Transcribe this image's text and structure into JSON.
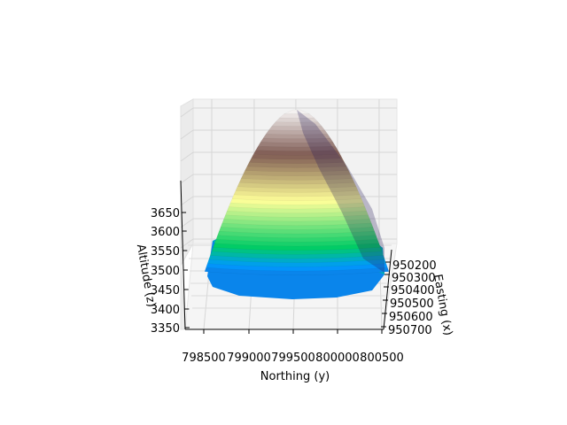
{
  "chart_data": {
    "type": "surface3d",
    "title": "",
    "colormap": "terrain",
    "grid": true,
    "axes": {
      "x": {
        "label": "Northing (y)",
        "range": [
          798300,
          800600
        ],
        "ticks": [
          "798500",
          "799000",
          "799500",
          "800000",
          "800500"
        ]
      },
      "y": {
        "label": "Easting (x)",
        "range": [
          950150,
          950720
        ],
        "ticks": [
          "950200",
          "950300",
          "950400",
          "950500",
          "950600",
          "950700"
        ]
      },
      "z": {
        "label": "Altitude (z)",
        "range": [
          3340,
          3720
        ],
        "ticks": [
          "3350",
          "3400",
          "3450",
          "3500",
          "3550",
          "3600",
          "3650"
        ]
      }
    },
    "surface": {
      "peak_altitude": 3720,
      "base_altitude": 3440,
      "profile_bands_bottom_to_top": [
        3440,
        3480,
        3520,
        3560,
        3600,
        3640,
        3680,
        3720
      ]
    }
  }
}
